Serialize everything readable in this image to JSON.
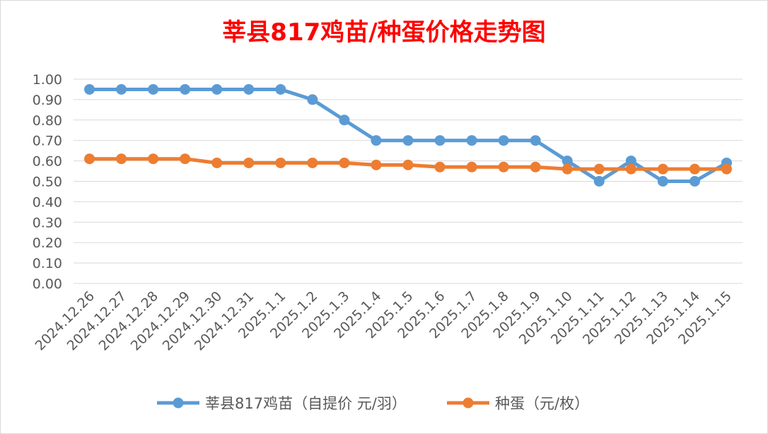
{
  "chart_data": {
    "type": "line",
    "title": "莘县817鸡苗/种蛋价格走势图",
    "categories": [
      "2024.12.26",
      "2024.12.27",
      "2024.12.28",
      "2024.12.29",
      "2024.12.30",
      "2024.12.31",
      "2025.1.1",
      "2025.1.2",
      "2025.1.3",
      "2025.1.4",
      "2025.1.5",
      "2025.1.6",
      "2025.1.7",
      "2025.1.8",
      "2025.1.9",
      "2025.1.10",
      "2025.1.11",
      "2025.1.12",
      "2025.1.13",
      "2025.1.14",
      "2025.1.15"
    ],
    "series": [
      {
        "name": "莘县817鸡苗（自提价 元/羽）",
        "color": "#5b9bd5",
        "values": [
          0.95,
          0.95,
          0.95,
          0.95,
          0.95,
          0.95,
          0.95,
          0.9,
          0.8,
          0.7,
          0.7,
          0.7,
          0.7,
          0.7,
          0.7,
          0.6,
          0.5,
          0.6,
          0.5,
          0.5,
          0.59
        ]
      },
      {
        "name": "种蛋（元/枚）",
        "color": "#ed7d31",
        "values": [
          0.61,
          0.61,
          0.61,
          0.61,
          0.59,
          0.59,
          0.59,
          0.59,
          0.59,
          0.58,
          0.58,
          0.57,
          0.57,
          0.57,
          0.57,
          0.56,
          0.56,
          0.56,
          0.56,
          0.56,
          0.56
        ]
      }
    ],
    "ylim": [
      0,
      1.0
    ],
    "yticks": [
      "0.00",
      "0.10",
      "0.20",
      "0.30",
      "0.40",
      "0.50",
      "0.60",
      "0.70",
      "0.80",
      "0.90",
      "1.00"
    ],
    "grid": true,
    "legend": "bottom"
  }
}
